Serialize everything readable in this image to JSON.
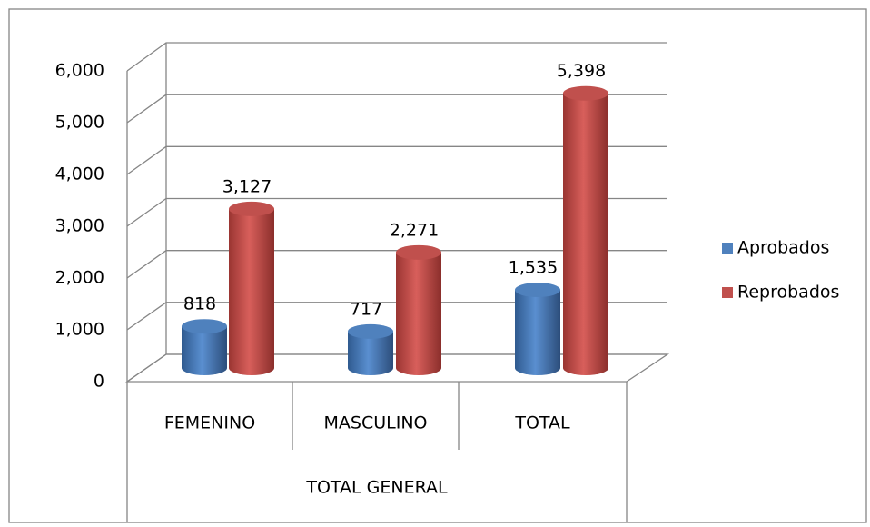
{
  "chart_data": {
    "type": "bar3d",
    "categories": [
      "FEMENINO",
      "MASCULINO",
      "TOTAL"
    ],
    "group_label": "TOTAL GENERAL",
    "series": [
      {
        "name": "Aprobados",
        "color": "#4f81bd",
        "values": [
          818,
          717,
          1535
        ],
        "value_labels": [
          "818",
          "717",
          "1,535"
        ]
      },
      {
        "name": "Reprobados",
        "color": "#c0504d",
        "values": [
          3127,
          2271,
          5398
        ],
        "value_labels": [
          "3,127",
          "2,271",
          "5,398"
        ]
      }
    ],
    "ylim": [
      0,
      6000
    ],
    "yticks": [
      0,
      {
        "value": 1000,
        "label": "1,000"
      },
      {
        "value": 2000,
        "label": "2,000"
      },
      {
        "value": 3000,
        "label": "3,000"
      },
      {
        "value": 4000,
        "label": "4,000"
      },
      {
        "value": 5000,
        "label": "5,000"
      },
      {
        "value": 6000,
        "label": "6,000"
      }
    ],
    "grid": true,
    "legend": "right"
  }
}
